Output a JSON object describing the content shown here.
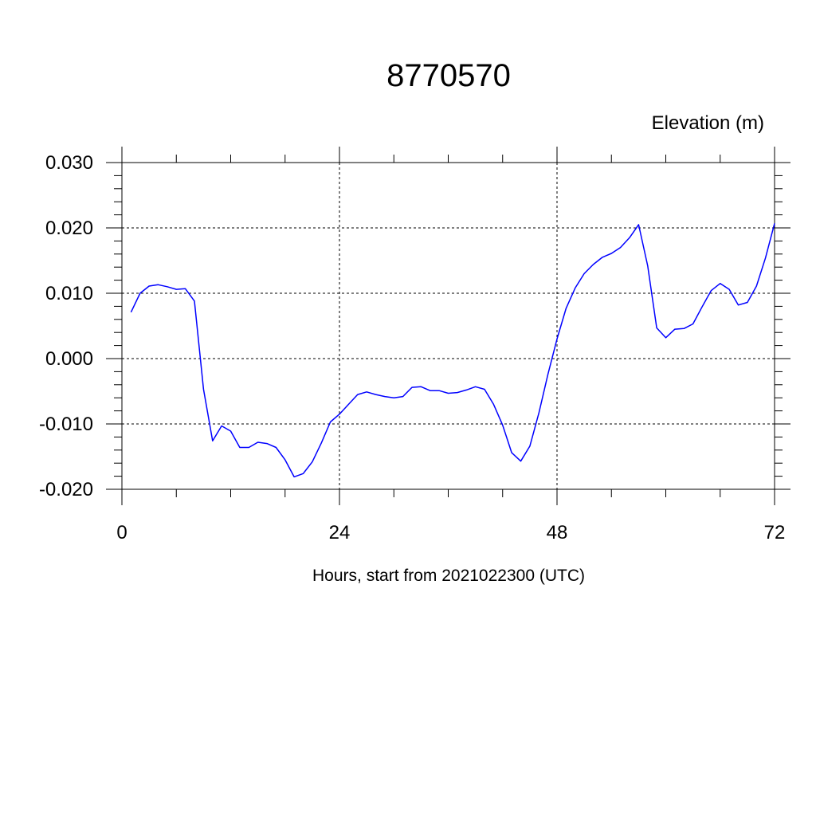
{
  "chart_data": {
    "type": "line",
    "title": "8770570",
    "ylabel": "Elevation (m)",
    "xlabel": "Hours, start from 2021022300 (UTC)",
    "xlim": [
      0,
      72
    ],
    "ylim": [
      -0.02,
      0.03
    ],
    "x_ticks": [
      0,
      24,
      48,
      72
    ],
    "x_tick_labels": [
      "0",
      "24",
      "48",
      "72"
    ],
    "y_ticks": [
      -0.02,
      -0.01,
      0.0,
      0.01,
      0.02,
      0.03
    ],
    "y_tick_labels": [
      "-0.020",
      "-0.010",
      "0.000",
      "0.010",
      "0.020",
      "0.030"
    ],
    "grid": true,
    "series": [
      {
        "color": "#0000ff",
        "x": [
          1,
          2,
          3,
          4,
          5,
          6,
          7,
          8,
          9,
          10,
          11,
          12,
          13,
          14,
          15,
          16,
          17,
          18,
          19,
          20,
          21,
          22,
          23,
          24,
          25,
          26,
          27,
          28,
          29,
          30,
          31,
          32,
          33,
          34,
          35,
          36,
          37,
          38,
          39,
          40,
          41,
          42,
          43,
          44,
          45,
          46,
          47,
          48,
          49,
          50,
          51,
          52,
          53,
          54,
          55,
          56,
          57,
          58,
          59,
          60,
          61,
          62,
          63,
          64,
          65,
          66,
          67,
          68,
          69,
          70,
          71,
          72
        ],
        "values": [
          0.0071,
          0.01,
          0.0111,
          0.0113,
          0.011,
          0.0106,
          0.0107,
          0.0088,
          -0.0047,
          -0.0126,
          -0.0103,
          -0.0111,
          -0.0136,
          -0.0136,
          -0.0128,
          -0.013,
          -0.0136,
          -0.0155,
          -0.0181,
          -0.0176,
          -0.0158,
          -0.0129,
          -0.0097,
          -0.0085,
          -0.007,
          -0.0055,
          -0.0051,
          -0.0055,
          -0.0058,
          -0.006,
          -0.0058,
          -0.0044,
          -0.0043,
          -0.0049,
          -0.0049,
          -0.0053,
          -0.0052,
          -0.0048,
          -0.0043,
          -0.0047,
          -0.007,
          -0.0102,
          -0.0144,
          -0.0157,
          -0.0134,
          -0.0083,
          -0.0024,
          0.003,
          0.0077,
          0.0108,
          0.013,
          0.0144,
          0.0155,
          0.0161,
          0.017,
          0.0185,
          0.0205,
          0.0142,
          0.0047,
          0.0032,
          0.0045,
          0.0046,
          0.0053,
          0.0079,
          0.0104,
          0.0115,
          0.0106,
          0.0082,
          0.0086,
          0.0111,
          0.0154,
          0.0207
        ]
      }
    ]
  }
}
